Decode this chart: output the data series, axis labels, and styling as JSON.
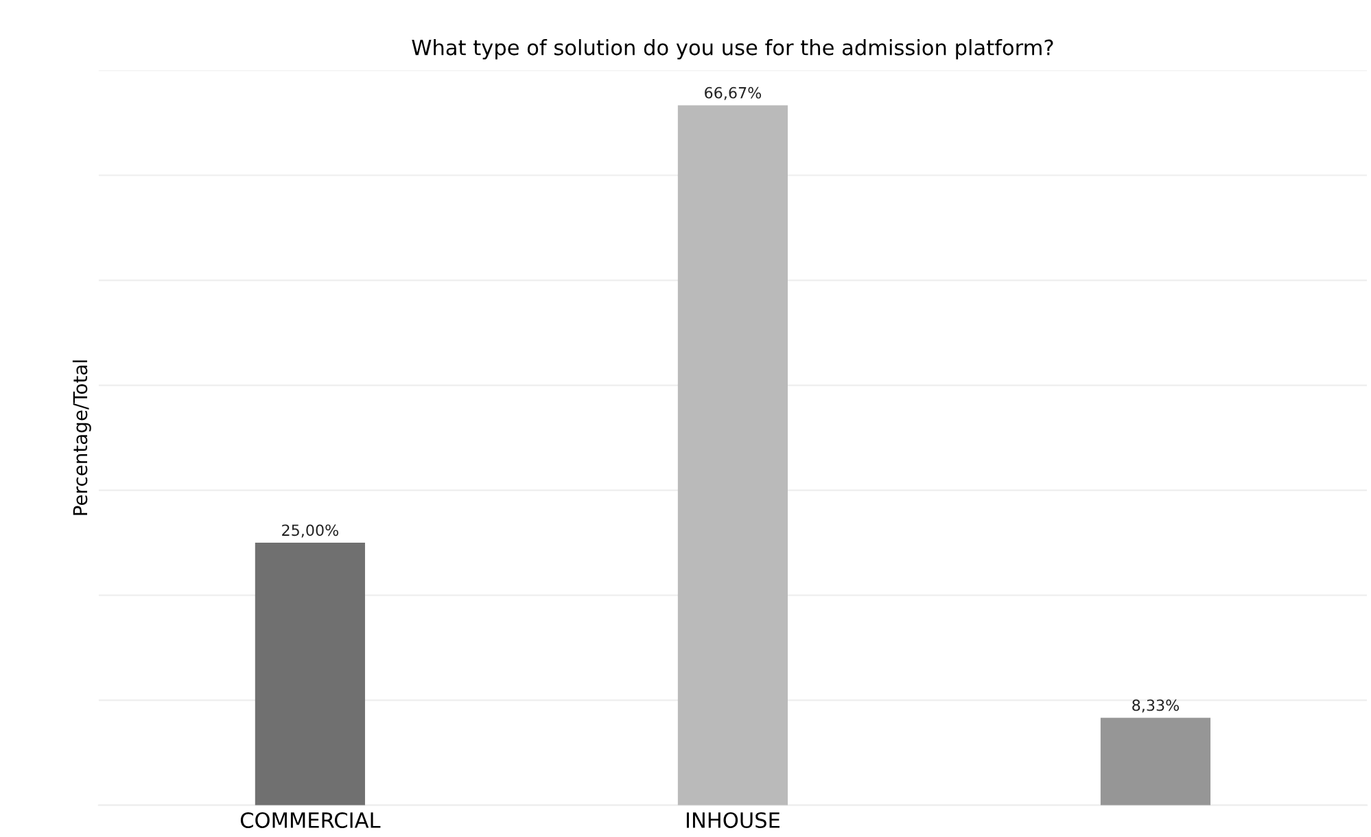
{
  "chart_data": {
    "type": "bar",
    "title": "What type of solution do you use for the admission platform?",
    "ylabel": "Percentage/Total",
    "categories": [
      "COMMERCIAL",
      "INHOUSE",
      null
    ],
    "values": [
      25,
      66.67,
      8.33
    ],
    "colors": [
      "#707070",
      "#bababa",
      "#969696"
    ],
    "value_labels": [
      "25,00%",
      "66,67%",
      "8,33%"
    ],
    "ylim": [
      0,
      70
    ],
    "yticks": [
      {
        "value": 0,
        "label": null
      },
      {
        "value": 10,
        "label": null
      },
      {
        "value": 20,
        "label": null
      },
      {
        "value": 30,
        "label": null
      },
      {
        "value": 40,
        "label": null
      },
      {
        "value": 50,
        "label": null
      },
      {
        "value": 60,
        "label": null
      },
      {
        "value": 70,
        "label": null
      }
    ],
    "grid": "y",
    "tick_labels": "x",
    "legend": false
  }
}
